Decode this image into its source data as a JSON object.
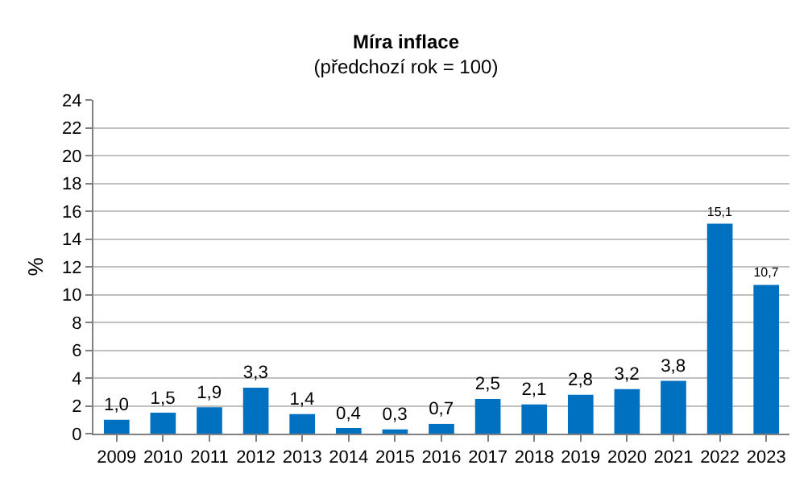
{
  "chart_data": {
    "type": "bar",
    "title": "Míra inflace",
    "subtitle": "(předchozí rok = 100)",
    "ylabel": "%",
    "categories": [
      "2009",
      "2010",
      "2011",
      "2012",
      "2013",
      "2014",
      "2015",
      "2016",
      "2017",
      "2018",
      "2019",
      "2020",
      "2021",
      "2022",
      "2023"
    ],
    "values": [
      1.0,
      1.5,
      1.9,
      3.3,
      1.4,
      0.4,
      0.3,
      0.7,
      2.5,
      2.1,
      2.8,
      3.2,
      3.8,
      15.1,
      10.7
    ],
    "value_labels": [
      "1,0",
      "1,5",
      "1,9",
      "3,3",
      "1,4",
      "0,4",
      "0,3",
      "0,7",
      "2,5",
      "2,1",
      "2,8",
      "3,2",
      "3,8",
      "15,1",
      "10,7"
    ],
    "color": "#0070c0",
    "ylim": [
      0,
      24
    ],
    "yticks": [
      0,
      2,
      4,
      6,
      8,
      10,
      12,
      14,
      16,
      18,
      20,
      22,
      24
    ],
    "grid": "y",
    "legend": false
  }
}
